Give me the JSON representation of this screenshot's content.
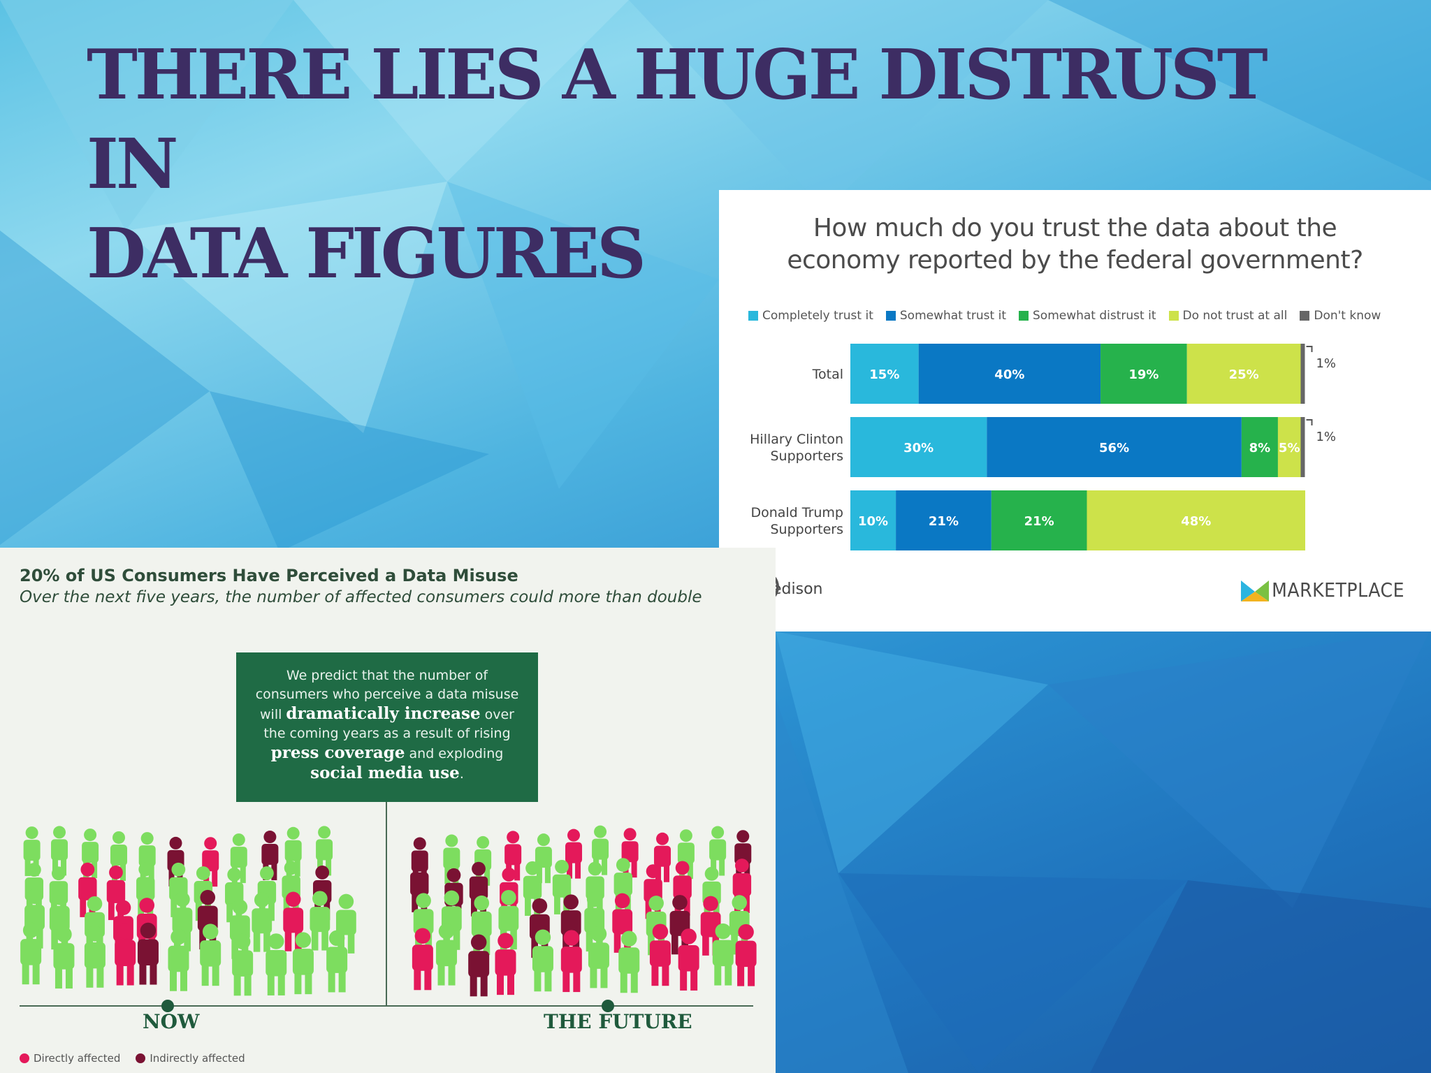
{
  "slide": {
    "title_line1": "THERE LIES A HUGE DISTRUST IN",
    "title_line2": "DATA FIGURES"
  },
  "trust_chart": {
    "chart_data": {
      "type": "bar",
      "orientation": "horizontal-stacked-100",
      "title_line1": "How much do you trust the data about the",
      "title_line2": "economy reported by the federal government?",
      "categories": [
        [
          "Total"
        ],
        [
          "Hillary Clinton",
          "Supporters"
        ],
        [
          "Donald Trump",
          "Supporters"
        ]
      ],
      "series": [
        {
          "name": "Completely trust it",
          "color": "#29b8dc",
          "values": [
            15,
            30,
            10
          ],
          "labels": [
            "15%",
            "30%",
            "10%"
          ]
        },
        {
          "name": "Somewhat trust it",
          "color": "#0a78c4",
          "values": [
            40,
            56,
            21
          ],
          "labels": [
            "40%",
            "56%",
            "21%"
          ]
        },
        {
          "name": "Somewhat distrust it",
          "color": "#26b24c",
          "values": [
            19,
            8,
            21
          ],
          "labels": [
            "19%",
            "8%",
            "21%"
          ]
        },
        {
          "name": "Do not trust at all",
          "color": "#cde24a",
          "values": [
            25,
            5,
            48
          ],
          "labels": [
            "25%",
            "5%",
            "48%"
          ]
        },
        {
          "name": "Don't know",
          "color": "#666666",
          "values": [
            1,
            1,
            0
          ],
          "labels": [
            "1%",
            "1%",
            ""
          ]
        }
      ],
      "legend_position": "top"
    },
    "logo_left": "edison",
    "logo_right": "MARKETPLACE"
  },
  "infographic": {
    "title": "20% of US Consumers Have Perceived a Data Misuse",
    "subtitle": "Over the next five years, the number of affected consumers could more than double",
    "prediction": {
      "line1": "We predict that the number of",
      "line2": "consumers who perceive a data misuse",
      "line3_pre": "will ",
      "line3_bold": "dramatically increase",
      "line3_post": " over",
      "line4": "the coming years as a result of rising",
      "line5_bold": "press coverage",
      "line5_post": " and exploding",
      "line6_bold": "social media use",
      "line6_post": "."
    },
    "label_now": "NOW",
    "label_future": "THE FUTURE",
    "legend_direct": "Directly affected",
    "legend_indirect": "Indirectly affected",
    "colors": {
      "unaffected": "#7ddd5f",
      "direct": "#e4195a",
      "indirect": "#7a1233",
      "box": "#1f6b45"
    }
  }
}
